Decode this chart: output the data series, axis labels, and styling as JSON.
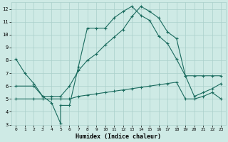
{
  "xlabel": "Humidex (Indice chaleur)",
  "background_color": "#ceeae5",
  "grid_color": "#aacfca",
  "line_color": "#1a6b5e",
  "xlim": [
    -0.5,
    23.5
  ],
  "ylim": [
    3,
    12.5
  ],
  "yticks": [
    3,
    4,
    5,
    6,
    7,
    8,
    9,
    10,
    11,
    12
  ],
  "xticks": [
    0,
    1,
    2,
    3,
    4,
    5,
    6,
    7,
    8,
    9,
    10,
    11,
    12,
    13,
    14,
    15,
    16,
    17,
    18,
    19,
    20,
    21,
    22,
    23
  ],
  "line1_x": [
    0,
    1,
    2,
    3,
    4,
    5,
    5,
    6,
    7,
    8,
    9,
    10,
    11,
    12,
    13,
    14,
    15,
    16,
    17,
    18,
    19,
    20,
    21,
    22,
    23
  ],
  "line1_y": [
    8.1,
    7.0,
    6.2,
    5.2,
    4.7,
    3.1,
    4.5,
    4.5,
    7.5,
    10.5,
    10.5,
    10.5,
    11.3,
    11.8,
    12.2,
    11.5,
    11.1,
    9.9,
    9.3,
    8.1,
    6.8,
    5.2,
    5.5,
    5.8,
    6.2
  ],
  "line2_x": [
    0,
    2,
    3,
    4,
    5,
    6,
    7,
    8,
    9,
    10,
    11,
    12,
    13,
    14,
    15,
    16,
    17,
    18,
    19,
    20,
    21,
    22,
    23
  ],
  "line2_y": [
    6.0,
    6.0,
    5.2,
    5.2,
    5.2,
    6.0,
    7.2,
    8.0,
    8.5,
    9.2,
    9.8,
    10.4,
    11.4,
    12.2,
    11.8,
    11.3,
    10.2,
    9.7,
    6.8,
    6.8,
    6.8,
    6.8,
    6.8
  ],
  "line3_x": [
    0,
    2,
    3,
    4,
    5,
    6,
    7,
    8,
    9,
    10,
    11,
    12,
    13,
    14,
    15,
    16,
    17,
    18,
    19,
    20,
    21,
    22,
    23
  ],
  "line3_y": [
    5.0,
    5.0,
    5.0,
    5.0,
    5.0,
    5.0,
    5.2,
    5.3,
    5.4,
    5.5,
    5.6,
    5.7,
    5.8,
    5.9,
    6.0,
    6.1,
    6.2,
    6.3,
    5.0,
    5.0,
    5.2,
    5.5,
    5.0
  ]
}
